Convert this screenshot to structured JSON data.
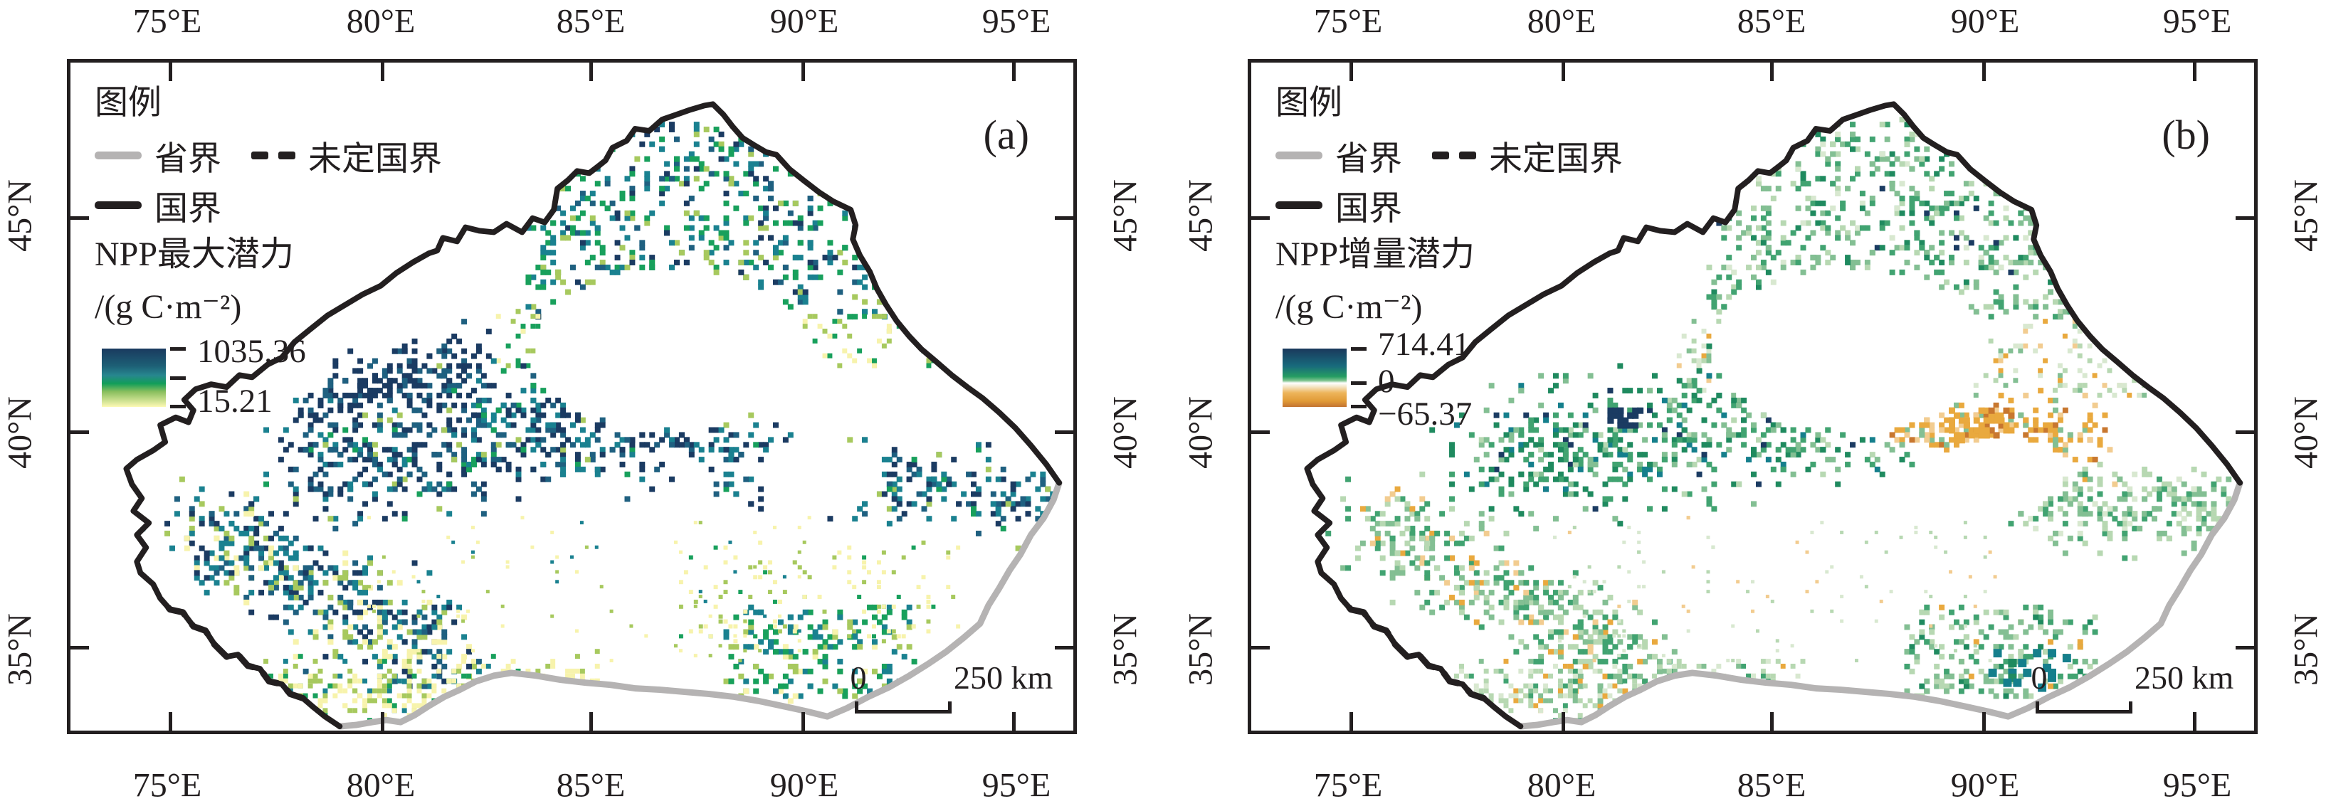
{
  "figure": {
    "panels": [
      {
        "tag": "(a)",
        "legend_title": "图例",
        "boundary_items": [
          {
            "name": "province-boundary",
            "label": "省界"
          },
          {
            "name": "undefined-national-boundary",
            "label": "未定国界"
          },
          {
            "name": "national-boundary",
            "label": "国界"
          }
        ],
        "layer_title": "NPP最大潜力",
        "layer_unit": "/(g C·m⁻²)",
        "colorbar_values": [
          "1035.36",
          "15.21"
        ],
        "scalebar": {
          "zero": "0",
          "distance": "250 km"
        }
      },
      {
        "tag": "(b)",
        "legend_title": "图例",
        "boundary_items": [
          {
            "name": "province-boundary",
            "label": "省界"
          },
          {
            "name": "undefined-national-boundary",
            "label": "未定国界"
          },
          {
            "name": "national-boundary",
            "label": "国界"
          }
        ],
        "layer_title": "NPP增量潜力",
        "layer_unit": "/(g C·m⁻²)",
        "colorbar_values": [
          "714.41",
          "0",
          "−65.37"
        ],
        "scalebar": {
          "zero": "0",
          "distance": "250 km"
        }
      }
    ],
    "axis": {
      "lon": [
        "75°E",
        "80°E",
        "85°E",
        "90°E",
        "95°E"
      ],
      "lat": [
        "45°N",
        "40°N",
        "35°N"
      ]
    },
    "colors": {
      "ink": "#231f20",
      "province_gray": "#b5b3b3",
      "colorbar_a_top_to_bottom": [
        "#1a3a5f",
        "#1d6076",
        "#27878f",
        "#129e59",
        "#8abf5e",
        "#fcf9b4"
      ],
      "colorbar_b_top_to_bottom": [
        "#1a395c",
        "#186a7c",
        "#259d62",
        "#ffffff",
        "#edb45a",
        "#c27331"
      ]
    }
  }
}
